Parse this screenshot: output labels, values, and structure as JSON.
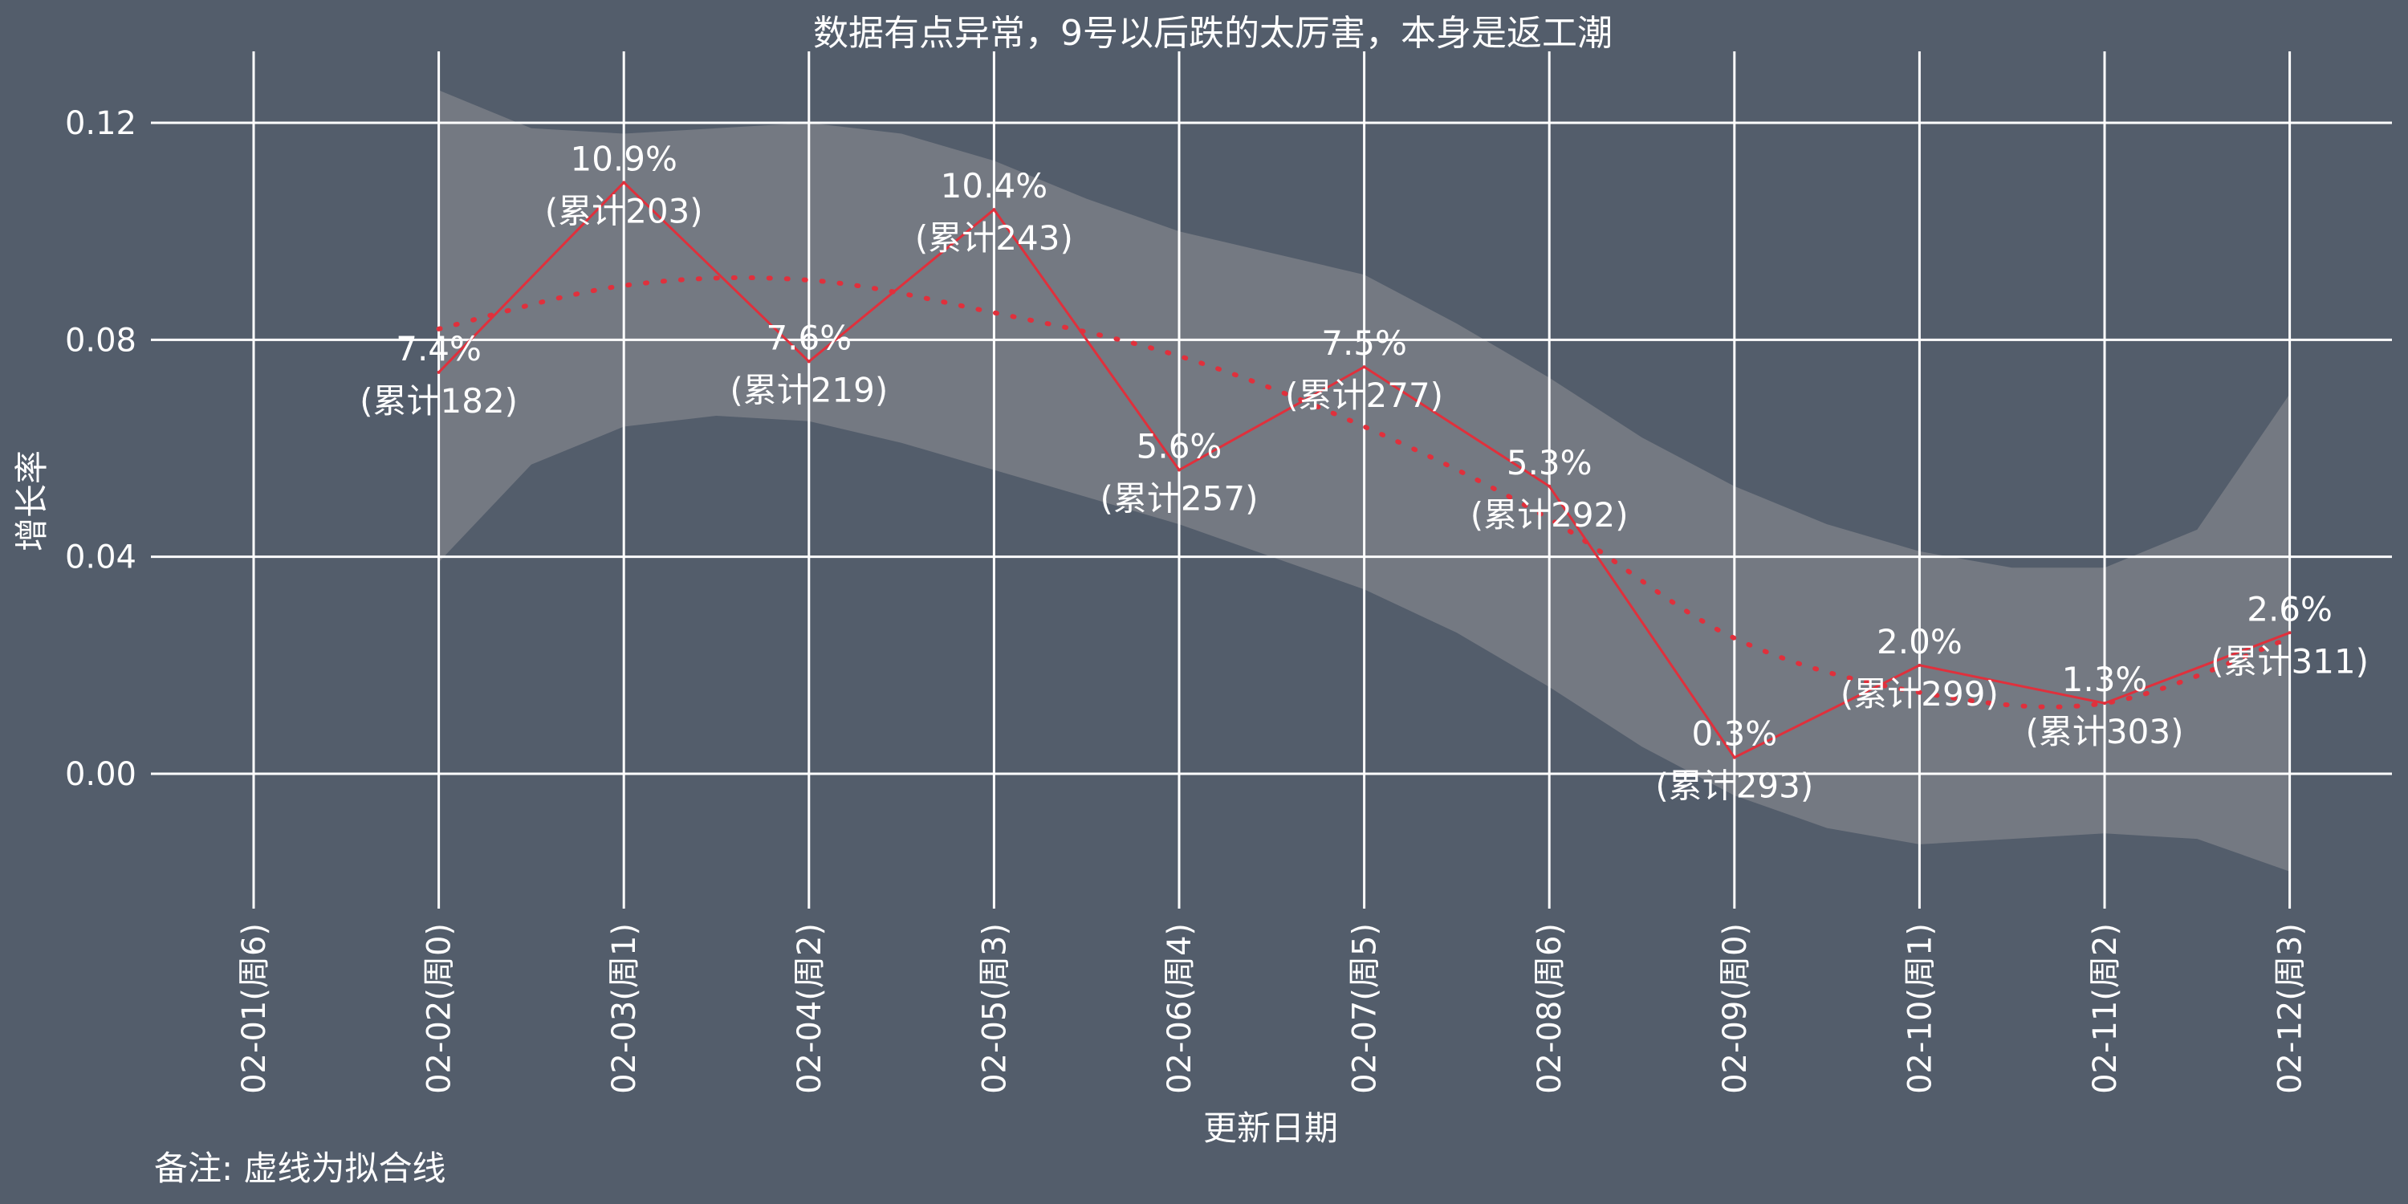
{
  "chart_data": {
    "type": "line",
    "title": "数据有点异常，9号以后跌的太厉害，本身是返工潮",
    "xlabel": "更新日期",
    "ylabel": "增长率",
    "note": "备注: 虚线为拟合线",
    "ylim": [
      -0.025,
      0.133
    ],
    "y_ticks": [
      0.0,
      0.04,
      0.08,
      0.12
    ],
    "y_tick_labels": [
      "0.00",
      "0.04",
      "0.08",
      "0.12"
    ],
    "categories": [
      "02-01(周6)",
      "02-02(周0)",
      "02-03(周1)",
      "02-04(周2)",
      "02-05(周3)",
      "02-06(周4)",
      "02-07(周5)",
      "02-08(周6)",
      "02-09(周0)",
      "02-10(周1)",
      "02-11(周2)",
      "02-12(周3)"
    ],
    "grid": true,
    "series": [
      {
        "kind": "observed",
        "color": "#e0303c",
        "x": [
          "02-02(周0)",
          "02-03(周1)",
          "02-04(周2)",
          "02-05(周3)",
          "02-06(周4)",
          "02-07(周5)",
          "02-08(周6)",
          "02-09(周0)",
          "02-10(周1)",
          "02-11(周2)",
          "02-12(周3)"
        ],
        "values": [
          0.074,
          0.109,
          0.076,
          0.104,
          0.056,
          0.075,
          0.053,
          0.003,
          0.02,
          0.013,
          0.026
        ],
        "pct_labels": [
          "7.4%",
          "10.9%",
          "7.6%",
          "10.4%",
          "5.6%",
          "7.5%",
          "5.3%",
          "0.3%",
          "2.0%",
          "1.3%",
          "2.6%"
        ],
        "cum_labels": [
          "(累计182)",
          "(累计203)",
          "(累计219)",
          "(累计243)",
          "(累计257)",
          "(累计277)",
          "(累计292)",
          "(累计293)",
          "(累计299)",
          "(累计303)",
          "(累计311)"
        ]
      },
      {
        "kind": "fit",
        "style": "dotted",
        "color": "#e0303c",
        "x": [
          "02-02(周0)",
          "02-03(周1)",
          "02-04(周2)",
          "02-05(周3)",
          "02-06(周4)",
          "02-07(周5)",
          "02-08(周6)",
          "02-09(周0)",
          "02-10(周1)",
          "02-11(周2)",
          "02-12(周3)"
        ],
        "values": [
          0.082,
          0.09,
          0.091,
          0.085,
          0.077,
          0.064,
          0.047,
          0.025,
          0.015,
          0.013,
          0.025
        ]
      }
    ],
    "confidence_band": {
      "color": "#7a7e86",
      "x_index": [
        1,
        1.5,
        2,
        2.5,
        3,
        3.5,
        4,
        4.5,
        5,
        5.5,
        6,
        6.5,
        7,
        7.5,
        8,
        8.5,
        9,
        9.5,
        10,
        10.5,
        11
      ],
      "upper": [
        0.126,
        0.119,
        0.118,
        0.119,
        0.12,
        0.118,
        0.113,
        0.106,
        0.1,
        0.096,
        0.092,
        0.083,
        0.073,
        0.062,
        0.053,
        0.046,
        0.041,
        0.038,
        0.038,
        0.045,
        0.07
      ],
      "lower": [
        0.039,
        0.057,
        0.064,
        0.066,
        0.065,
        0.061,
        0.056,
        0.051,
        0.046,
        0.04,
        0.034,
        0.026,
        0.016,
        0.005,
        -0.004,
        -0.01,
        -0.013,
        -0.012,
        -0.011,
        -0.012,
        -0.018
      ]
    }
  }
}
